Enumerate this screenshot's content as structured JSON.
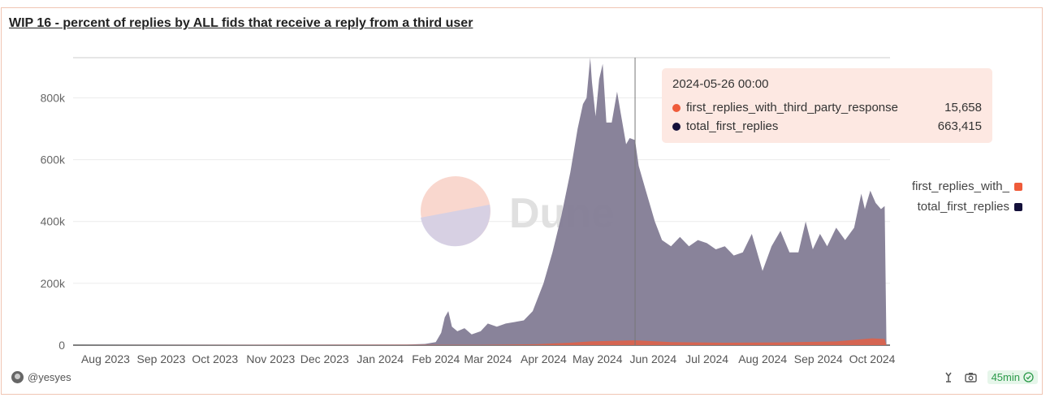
{
  "card": {
    "title": "WIP 16 - percent of replies by ALL fids that receive a reply from a third user",
    "user": "@yesyes",
    "refresh_badge": "45min"
  },
  "watermark": {
    "text": "Dune"
  },
  "tooltip": {
    "date": "2024-05-26 00:00",
    "rows": [
      {
        "name": "first_replies_with_third_party_response",
        "value": "15,658",
        "color": "#ef5b3a"
      },
      {
        "name": "total_first_replies",
        "value": "663,415",
        "color": "#14103a"
      }
    ]
  },
  "legend": [
    {
      "label": "first_replies_with_",
      "color": "#ef5b3a"
    },
    {
      "label": "total_first_replies",
      "color": "#14103a"
    }
  ],
  "chart_data": {
    "type": "area",
    "title": "WIP 16 - percent of replies by ALL fids that receive a reply from a third user",
    "xlabel": "",
    "ylabel": "",
    "ylim": [
      0,
      930000
    ],
    "y_ticks": [
      0,
      200000,
      400000,
      600000,
      800000
    ],
    "y_tick_labels": [
      "0",
      "200k",
      "400k",
      "600k",
      "800k"
    ],
    "x_ticks": [
      "2023-08-01",
      "2023-09-01",
      "2023-10-01",
      "2023-11-01",
      "2023-12-01",
      "2024-01-01",
      "2024-02-01",
      "2024-03-01",
      "2024-04-01",
      "2024-05-01",
      "2024-06-01",
      "2024-07-01",
      "2024-08-01",
      "2024-09-01",
      "2024-10-01"
    ],
    "x_tick_labels": [
      "Aug 2023",
      "Sep 2023",
      "Oct 2023",
      "Nov 2023",
      "Dec 2023",
      "Jan 2024",
      "Feb 2024",
      "Mar 2024",
      "Apr 2024",
      "May 2024",
      "Jun 2024",
      "Jul 2024",
      "Aug 2024",
      "Sep 2024",
      "Oct 2024"
    ],
    "x_range": [
      "2023-07-18",
      "2024-10-15"
    ],
    "stacked": true,
    "grid": true,
    "legend_position": "right",
    "series": [
      {
        "name": "total_first_replies",
        "color": "#857f97",
        "points": [
          [
            "2023-07-18",
            0
          ],
          [
            "2024-01-20",
            2000
          ],
          [
            "2024-01-30",
            4000
          ],
          [
            "2024-02-05",
            10000
          ],
          [
            "2024-02-08",
            40000
          ],
          [
            "2024-02-10",
            90000
          ],
          [
            "2024-02-12",
            110000
          ],
          [
            "2024-02-14",
            60000
          ],
          [
            "2024-02-17",
            45000
          ],
          [
            "2024-02-21",
            55000
          ],
          [
            "2024-02-25",
            35000
          ],
          [
            "2024-03-01",
            45000
          ],
          [
            "2024-03-05",
            70000
          ],
          [
            "2024-03-10",
            60000
          ],
          [
            "2024-03-15",
            70000
          ],
          [
            "2024-03-20",
            75000
          ],
          [
            "2024-03-25",
            80000
          ],
          [
            "2024-03-30",
            110000
          ],
          [
            "2024-04-05",
            200000
          ],
          [
            "2024-04-10",
            300000
          ],
          [
            "2024-04-15",
            420000
          ],
          [
            "2024-04-20",
            560000
          ],
          [
            "2024-04-24",
            700000
          ],
          [
            "2024-04-27",
            780000
          ],
          [
            "2024-04-29",
            800000
          ],
          [
            "2024-05-01",
            930000
          ],
          [
            "2024-05-02",
            850000
          ],
          [
            "2024-05-04",
            740000
          ],
          [
            "2024-05-06",
            860000
          ],
          [
            "2024-05-08",
            910000
          ],
          [
            "2024-05-10",
            720000
          ],
          [
            "2024-05-13",
            720000
          ],
          [
            "2024-05-16",
            820000
          ],
          [
            "2024-05-18",
            750000
          ],
          [
            "2024-05-21",
            650000
          ],
          [
            "2024-05-23",
            670000
          ],
          [
            "2024-05-26",
            663415
          ],
          [
            "2024-05-28",
            580000
          ],
          [
            "2024-06-01",
            500000
          ],
          [
            "2024-06-06",
            400000
          ],
          [
            "2024-06-10",
            340000
          ],
          [
            "2024-06-15",
            320000
          ],
          [
            "2024-06-20",
            350000
          ],
          [
            "2024-06-25",
            320000
          ],
          [
            "2024-06-30",
            340000
          ],
          [
            "2024-07-05",
            330000
          ],
          [
            "2024-07-10",
            310000
          ],
          [
            "2024-07-15",
            320000
          ],
          [
            "2024-07-20",
            290000
          ],
          [
            "2024-07-25",
            300000
          ],
          [
            "2024-07-30",
            360000
          ],
          [
            "2024-08-05",
            240000
          ],
          [
            "2024-08-10",
            320000
          ],
          [
            "2024-08-15",
            370000
          ],
          [
            "2024-08-20",
            300000
          ],
          [
            "2024-08-25",
            300000
          ],
          [
            "2024-08-29",
            400000
          ],
          [
            "2024-09-02",
            310000
          ],
          [
            "2024-09-06",
            360000
          ],
          [
            "2024-09-10",
            320000
          ],
          [
            "2024-09-15",
            380000
          ],
          [
            "2024-09-20",
            340000
          ],
          [
            "2024-09-25",
            380000
          ],
          [
            "2024-09-29",
            490000
          ],
          [
            "2024-10-01",
            440000
          ],
          [
            "2024-10-04",
            500000
          ],
          [
            "2024-10-07",
            460000
          ],
          [
            "2024-10-10",
            440000
          ],
          [
            "2024-10-12",
            450000
          ],
          [
            "2024-10-13",
            0
          ]
        ]
      },
      {
        "name": "first_replies_with_third_party_response",
        "color": "#ef5b3a",
        "points": [
          [
            "2023-07-18",
            0
          ],
          [
            "2024-03-01",
            1000
          ],
          [
            "2024-04-01",
            3000
          ],
          [
            "2024-04-20",
            8000
          ],
          [
            "2024-05-01",
            12000
          ],
          [
            "2024-05-26",
            15658
          ],
          [
            "2024-06-15",
            10000
          ],
          [
            "2024-07-15",
            8000
          ],
          [
            "2024-08-15",
            9000
          ],
          [
            "2024-09-15",
            12000
          ],
          [
            "2024-10-05",
            22000
          ],
          [
            "2024-10-12",
            20000
          ],
          [
            "2024-10-13",
            0
          ]
        ]
      }
    ],
    "hover_date": "2024-05-26"
  }
}
